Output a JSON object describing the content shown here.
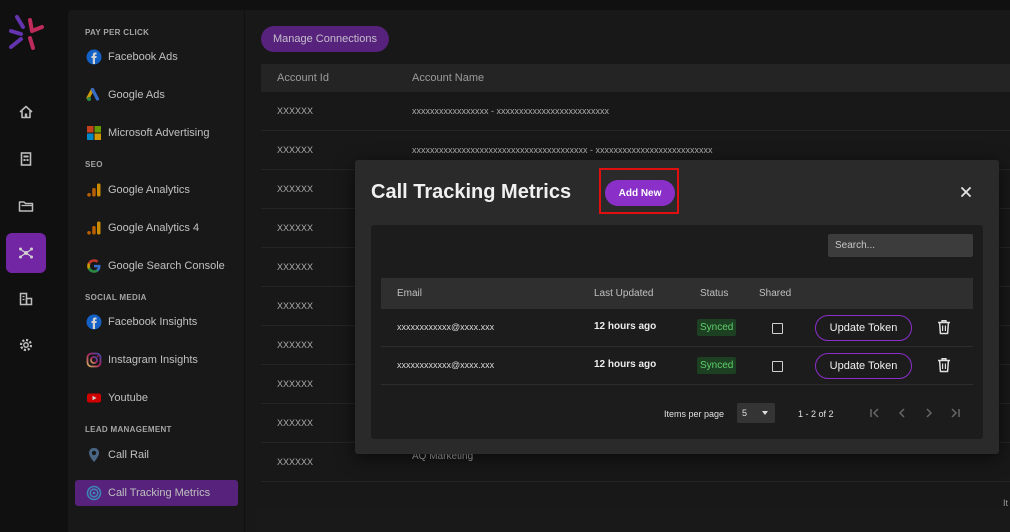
{
  "rail": {
    "items": [
      "home-icon",
      "building-icon",
      "folder-icon",
      "connections-icon",
      "reports-icon",
      "settings-icon"
    ],
    "active_index": 3,
    "accent": "#8b2fc9"
  },
  "sidebar": {
    "sections": [
      {
        "title": "PAY PER CLICK",
        "items": [
          "Facebook Ads",
          "Google Ads",
          "Microsoft Advertising"
        ]
      },
      {
        "title": "SEO",
        "items": [
          "Google Analytics",
          "Google Analytics 4",
          "Google Search Console"
        ]
      },
      {
        "title": "SOCIAL MEDIA",
        "items": [
          "Facebook Insights",
          "Instagram Insights",
          "Youtube"
        ]
      },
      {
        "title": "LEAD MANAGEMENT",
        "items": [
          "Call Rail",
          "Call Tracking Metrics"
        ]
      }
    ],
    "active_item": "Call Tracking Metrics"
  },
  "main": {
    "manage_label": "Manage Connections",
    "columns": [
      "Account Id",
      "Account Name"
    ],
    "rows": [
      {
        "id": "XXXXXX",
        "name": "xxxxxxxxxxxxxxxxx - xxxxxxxxxxxxxxxxxxxxxxxxx"
      },
      {
        "id": "XXXXXX",
        "name": "xxxxxxxxxxxxxxxxxxxxxxxxxxxxxxxxxxxxxxx - xxxxxxxxxxxxxxxxxxxxxxxxxx"
      },
      {
        "id": "XXXXXX",
        "name": ""
      },
      {
        "id": "XXXXXX",
        "name": ""
      },
      {
        "id": "XXXXXX",
        "name": ""
      },
      {
        "id": "XXXXXX",
        "name": ""
      },
      {
        "id": "XXXXXX",
        "name": ""
      },
      {
        "id": "XXXXXX",
        "name": ""
      },
      {
        "id": "XXXXXX",
        "name": ""
      },
      {
        "id": "XXXXXX",
        "name": "AQ Marketing"
      }
    ],
    "footer_fragment": "It"
  },
  "modal": {
    "title": "Call Tracking Metrics",
    "add_label": "Add New",
    "search_placeholder": "Search...",
    "columns": [
      "Email",
      "Last Updated",
      "Status",
      "Shared"
    ],
    "rows": [
      {
        "email": "xxxxxxxxxxxx@xxxx.xxx",
        "updated": "12 hours ago",
        "status": "Synced",
        "shared": false,
        "action": "Update Token"
      },
      {
        "email": "xxxxxxxxxxxx@xxxx.xxx",
        "updated": "12 hours ago",
        "status": "Synced",
        "shared": false,
        "action": "Update Token"
      }
    ],
    "pager": {
      "items_label": "Items per page",
      "per_page": "5",
      "range": "1 - 2 of 2"
    }
  }
}
